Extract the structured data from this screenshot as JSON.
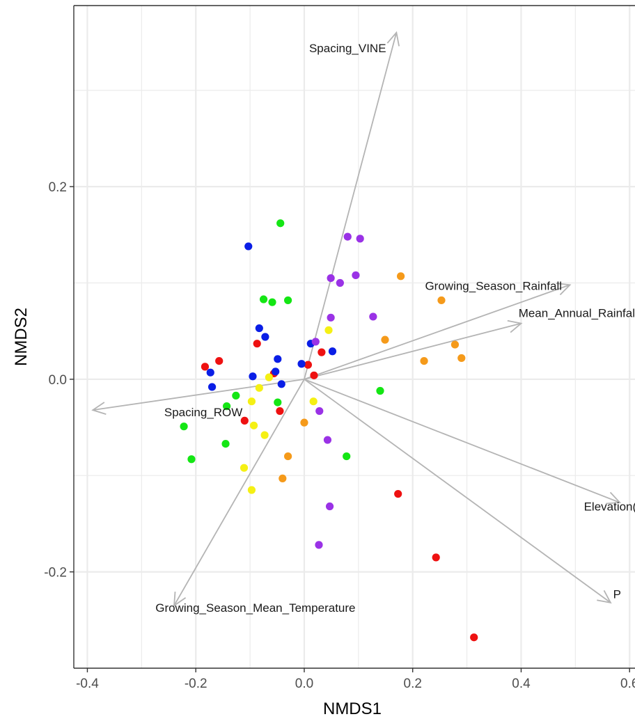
{
  "chart_data": {
    "type": "scatter",
    "title": "",
    "xlabel": "NMDS1",
    "ylabel": "NMDS2",
    "xlim": [
      -0.425,
      0.61
    ],
    "ylim": [
      -0.3,
      0.388
    ],
    "x_major_ticks": [
      -0.4,
      -0.2,
      0.0,
      0.2,
      0.4,
      0.6
    ],
    "x_tick_labels": [
      "-0.4",
      "-0.2",
      "0.0",
      "0.2",
      "0.4",
      "0.6"
    ],
    "x_minor_ticks": [
      -0.3,
      -0.1,
      0.1,
      0.3,
      0.5
    ],
    "y_major_ticks": [
      -0.2,
      0.0,
      0.2
    ],
    "y_tick_labels": [
      "-0.2",
      "0.0",
      "0.2"
    ],
    "y_minor_ticks": [
      -0.1,
      0.1,
      0.3
    ],
    "grid": true,
    "legend": "none",
    "colors": {
      "red": "#ee1111",
      "blue": "#0a1ee6",
      "green": "#14e614",
      "yellow": "#f5f014",
      "orange": "#f59a1a",
      "purple": "#9a32e6",
      "vector": "#b4b4b4",
      "grid": "#ebebeb",
      "panel_border": "#333333"
    },
    "series": [
      {
        "color": "red",
        "points": [
          [
            -0.183,
            0.013
          ],
          [
            -0.157,
            0.019
          ],
          [
            -0.087,
            0.037
          ],
          [
            -0.056,
            0.006
          ],
          [
            -0.11,
            -0.043
          ],
          [
            -0.045,
            -0.033
          ],
          [
            0.007,
            0.015
          ],
          [
            0.018,
            0.004
          ],
          [
            0.032,
            0.028
          ],
          [
            0.173,
            -0.119
          ],
          [
            0.243,
            -0.185
          ],
          [
            0.313,
            -0.268
          ]
        ]
      },
      {
        "color": "blue",
        "points": [
          [
            -0.103,
            0.138
          ],
          [
            -0.083,
            0.053
          ],
          [
            -0.072,
            0.044
          ],
          [
            -0.173,
            0.007
          ],
          [
            -0.17,
            -0.008
          ],
          [
            -0.095,
            0.003
          ],
          [
            -0.049,
            0.021
          ],
          [
            -0.053,
            0.008
          ],
          [
            -0.042,
            -0.005
          ],
          [
            -0.005,
            0.016
          ],
          [
            0.012,
            0.037
          ],
          [
            0.052,
            0.029
          ]
        ]
      },
      {
        "color": "green",
        "points": [
          [
            -0.044,
            0.162
          ],
          [
            -0.075,
            0.083
          ],
          [
            -0.059,
            0.08
          ],
          [
            -0.03,
            0.082
          ],
          [
            -0.126,
            -0.017
          ],
          [
            -0.143,
            -0.028
          ],
          [
            -0.049,
            -0.024
          ],
          [
            -0.222,
            -0.049
          ],
          [
            -0.145,
            -0.067
          ],
          [
            -0.208,
            -0.083
          ],
          [
            0.078,
            -0.08
          ],
          [
            0.14,
            -0.012
          ]
        ]
      },
      {
        "color": "yellow",
        "points": [
          [
            0.045,
            0.051
          ],
          [
            -0.065,
            0.002
          ],
          [
            -0.083,
            -0.009
          ],
          [
            0.017,
            -0.023
          ],
          [
            -0.097,
            -0.023
          ],
          [
            -0.093,
            -0.048
          ],
          [
            -0.073,
            -0.058
          ],
          [
            -0.111,
            -0.092
          ],
          [
            -0.097,
            -0.115
          ]
        ]
      },
      {
        "color": "orange",
        "points": [
          [
            0.178,
            0.107
          ],
          [
            0.253,
            0.082
          ],
          [
            0.149,
            0.041
          ],
          [
            0.278,
            0.036
          ],
          [
            0.221,
            0.019
          ],
          [
            0.29,
            0.022
          ],
          [
            0.0,
            -0.045
          ],
          [
            -0.03,
            -0.08
          ],
          [
            -0.04,
            -0.103
          ]
        ]
      },
      {
        "color": "purple",
        "points": [
          [
            0.08,
            0.148
          ],
          [
            0.103,
            0.146
          ],
          [
            0.049,
            0.105
          ],
          [
            0.066,
            0.1
          ],
          [
            0.095,
            0.108
          ],
          [
            0.049,
            0.064
          ],
          [
            0.127,
            0.065
          ],
          [
            0.021,
            0.039
          ],
          [
            0.028,
            -0.033
          ],
          [
            0.043,
            -0.063
          ],
          [
            0.047,
            -0.132
          ],
          [
            0.027,
            -0.172
          ]
        ]
      }
    ],
    "vectors": [
      {
        "label": "Spacing_VINE",
        "end": [
          0.17,
          0.36
        ],
        "label_anchor": [
          0.08,
          0.344
        ]
      },
      {
        "label": "Growing_Season_Rainfall",
        "end": [
          0.49,
          0.098
        ],
        "label_anchor": [
          0.349,
          0.097
        ]
      },
      {
        "label": "Mean_Annual_Rainfall",
        "end": [
          0.4,
          0.058
        ],
        "label_anchor": [
          0.505,
          0.069
        ]
      },
      {
        "label": "Spacing_ROW",
        "end": [
          -0.39,
          -0.032
        ],
        "label_anchor": [
          -0.186,
          -0.034
        ]
      },
      {
        "label": "Elevation(m)",
        "end": [
          0.582,
          -0.128
        ],
        "label_anchor": [
          0.577,
          -0.132
        ]
      },
      {
        "label": "P",
        "end": [
          0.565,
          -0.232
        ],
        "label_anchor": [
          0.577,
          -0.223
        ]
      },
      {
        "label": "Growing_Season_Mean_Temperature",
        "end": [
          -0.24,
          -0.235
        ],
        "label_anchor": [
          -0.09,
          -0.237
        ]
      }
    ]
  }
}
